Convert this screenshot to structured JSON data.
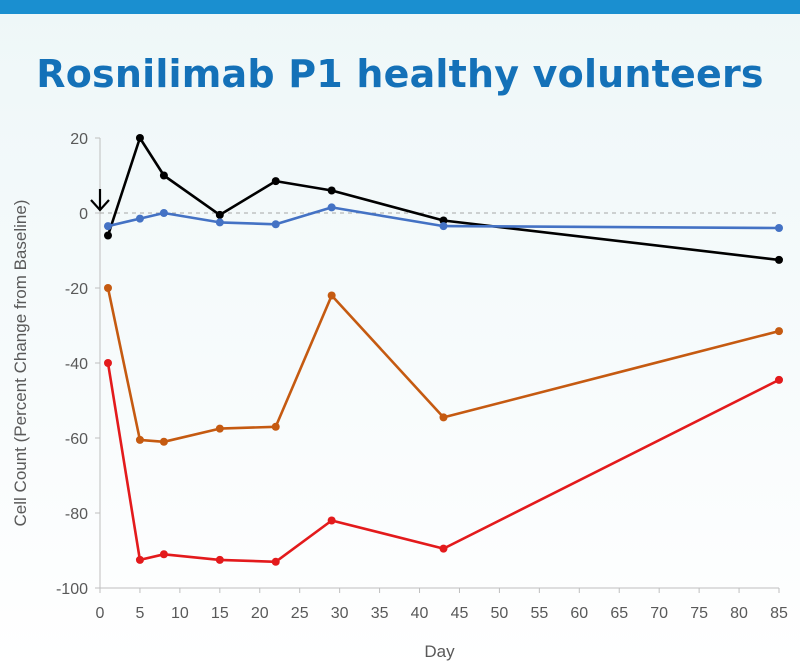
{
  "slide": {
    "title": "Rosnilimab P1 healthy volunteers",
    "accent_bar_color": "#1a8fd0",
    "title_color": "#1471b8"
  },
  "chart_data": {
    "type": "line",
    "title": "Rosnilimab P1 healthy volunteers",
    "xlabel": "Day",
    "ylabel": "Cell Count (Percent Change from Baseline)",
    "xlim": [
      0,
      85
    ],
    "ylim": [
      -100,
      20
    ],
    "x_ticks": [
      0,
      5,
      10,
      15,
      20,
      25,
      30,
      35,
      40,
      45,
      50,
      55,
      60,
      65,
      70,
      75,
      80,
      85
    ],
    "y_ticks": [
      20,
      0,
      -20,
      -40,
      -60,
      -80,
      -100
    ],
    "reference_line": {
      "y": 0,
      "style": "dashed",
      "color": "#a6a6a6"
    },
    "annotation": {
      "type": "arrow-down",
      "x": 0,
      "y": 0,
      "color": "#000000"
    },
    "grid": false,
    "legend": "none",
    "series": [
      {
        "color": "#000000",
        "points": [
          [
            1,
            -6
          ],
          [
            5,
            20
          ],
          [
            8,
            10
          ],
          [
            15,
            -0.5
          ],
          [
            22,
            8.5
          ],
          [
            29,
            6
          ],
          [
            43,
            -2
          ],
          [
            85,
            -12.5
          ]
        ]
      },
      {
        "color": "#4472c4",
        "points": [
          [
            1,
            -3.5
          ],
          [
            5,
            -1.5
          ],
          [
            8,
            0
          ],
          [
            15,
            -2.5
          ],
          [
            22,
            -3
          ],
          [
            29,
            1.5
          ],
          [
            43,
            -3.5
          ],
          [
            85,
            -4
          ]
        ]
      },
      {
        "color": "#c55a11",
        "points": [
          [
            1,
            -20
          ],
          [
            5,
            -60.5
          ],
          [
            8,
            -61
          ],
          [
            15,
            -57.5
          ],
          [
            22,
            -57
          ],
          [
            29,
            -22
          ],
          [
            43,
            -54.5
          ],
          [
            85,
            -31.5
          ]
        ]
      },
      {
        "color": "#e31a1c",
        "points": [
          [
            1,
            -40
          ],
          [
            5,
            -92.5
          ],
          [
            8,
            -91
          ],
          [
            15,
            -92.5
          ],
          [
            22,
            -93
          ],
          [
            29,
            -82
          ],
          [
            43,
            -89.5
          ],
          [
            85,
            -44.5
          ]
        ]
      }
    ]
  }
}
